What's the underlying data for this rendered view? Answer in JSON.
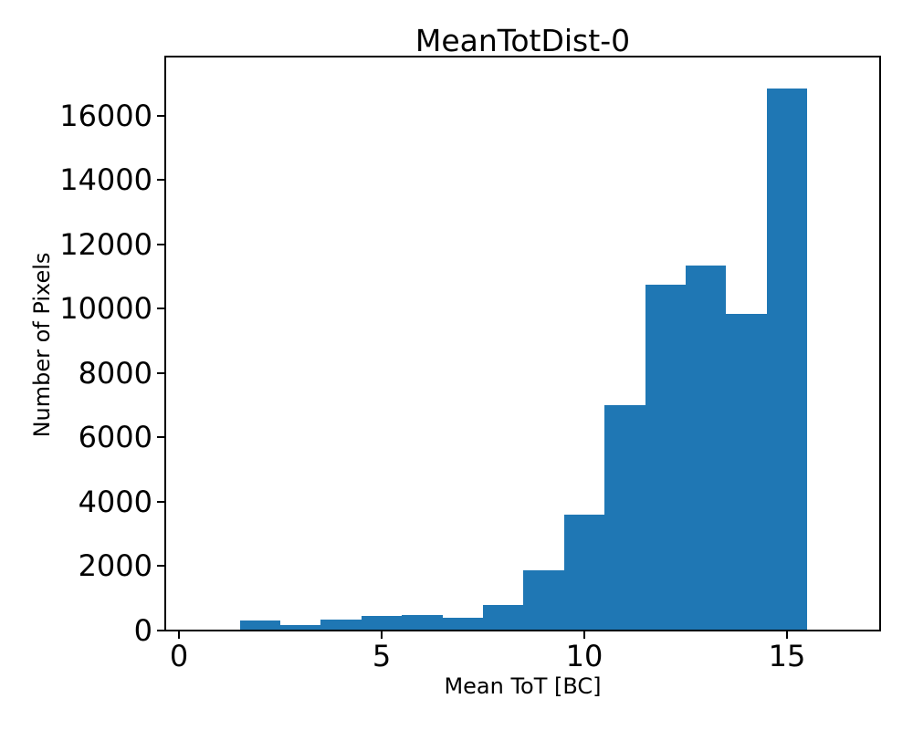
{
  "figure": {
    "background": "#ffffff",
    "text_color": "#000000",
    "spine_color": "#000000"
  },
  "chart_data": {
    "type": "bar",
    "subtype": "histogram",
    "title": "MeanTotDist-0",
    "xlabel": "Mean ToT [BC]",
    "ylabel": "Number of Pixels",
    "bar_color": "#1f77b4",
    "bin_edges": [
      1.5,
      2.5,
      3.5,
      4.5,
      5.5,
      6.5,
      7.5,
      8.5,
      9.5,
      10.5,
      11.5,
      12.5,
      13.5,
      14.5,
      15.5
    ],
    "values": [
      300,
      170,
      350,
      460,
      470,
      410,
      790,
      1860,
      3600,
      7000,
      10750,
      11350,
      9850,
      16850
    ],
    "xticks": [
      0,
      5,
      10,
      15
    ],
    "xtick_labels": [
      "0",
      "5",
      "10",
      "15"
    ],
    "yticks": [
      0,
      2000,
      4000,
      6000,
      8000,
      10000,
      12000,
      14000,
      16000
    ],
    "ytick_labels": [
      "0",
      "2000",
      "4000",
      "6000",
      "8000",
      "10000",
      "12000",
      "14000",
      "16000"
    ],
    "xlim": [
      -0.338,
      17.297
    ],
    "ylim": [
      0,
      17843
    ],
    "grid": false,
    "legend_position": "none"
  }
}
